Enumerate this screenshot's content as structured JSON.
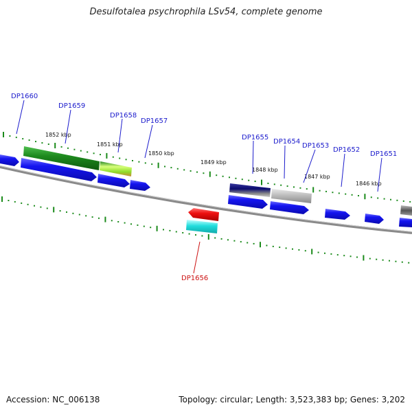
{
  "title": "Desulfotalea psychrophila LSv54, complete genome",
  "footer": {
    "accession": "Accession: NC_006138",
    "summary": "Topology: circular; Length: 3,523,383 bp; Genes: 3,202"
  },
  "scale_labels": [
    "1852 kbp",
    "1851 kbp",
    "1850 kbp",
    "1849 kbp",
    "1848 kbp",
    "1847 kbp",
    "1846 kbp"
  ],
  "gene_labels": [
    {
      "name": "DP1660",
      "color": "#1a1acc"
    },
    {
      "name": "DP1659",
      "color": "#1a1acc"
    },
    {
      "name": "DP1658",
      "color": "#1a1acc"
    },
    {
      "name": "DP1657",
      "color": "#1a1acc"
    },
    {
      "name": "DP1655",
      "color": "#1a1acc"
    },
    {
      "name": "DP1654",
      "color": "#1a1acc"
    },
    {
      "name": "DP1653",
      "color": "#1a1acc"
    },
    {
      "name": "DP1652",
      "color": "#1a1acc"
    },
    {
      "name": "DP1651",
      "color": "#1a1acc"
    },
    {
      "name": "DP1656",
      "color": "#cc1111"
    }
  ],
  "colors": {
    "forward_gene": "#1010ee",
    "reverse_gene_red": "#ee1010",
    "reverse_gene_cyan": "#22dddd",
    "feature_green": "#1e8a1e",
    "feature_lime": "#8fdc2a",
    "feature_navy": "#0a0a6e",
    "feature_gray": "#b8b8b8",
    "backbone": "#8a8a8a",
    "tick_green": "#1a8a1a"
  }
}
